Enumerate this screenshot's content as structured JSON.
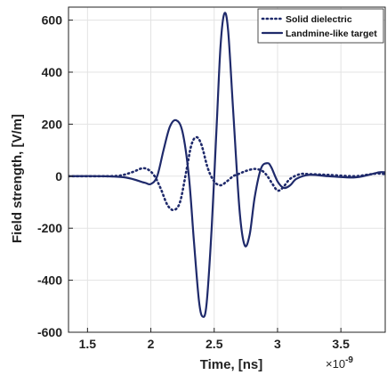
{
  "chart_data": {
    "type": "line",
    "xlabel": "Time, [ns]",
    "ylabel": "Field strength, [V/m]",
    "x_exponent_label": "×10",
    "x_exponent_power": "-9",
    "xlim": [
      1.35,
      3.85
    ],
    "ylim": [
      -600,
      650
    ],
    "x_ticks": [
      1.5,
      2,
      2.5,
      3,
      3.5
    ],
    "x_tick_labels": [
      "1.5",
      "2",
      "2.5",
      "3",
      "3.5"
    ],
    "y_ticks": [
      -600,
      -400,
      -200,
      0,
      200,
      400,
      600
    ],
    "y_tick_labels": [
      "-600",
      "-400",
      "-200",
      "0",
      "200",
      "400",
      "600"
    ],
    "grid": true,
    "legend_position": "top-right",
    "series": [
      {
        "name": "Solid dielectric",
        "style": "dotted",
        "color": "#1f2a6b",
        "points": [
          [
            1.35,
            0
          ],
          [
            1.6,
            0
          ],
          [
            1.75,
            2
          ],
          [
            1.85,
            15
          ],
          [
            1.93,
            30
          ],
          [
            1.98,
            25
          ],
          [
            2.03,
            0
          ],
          [
            2.08,
            -50
          ],
          [
            2.13,
            -110
          ],
          [
            2.18,
            -130
          ],
          [
            2.23,
            -100
          ],
          [
            2.28,
            20
          ],
          [
            2.32,
            120
          ],
          [
            2.36,
            150
          ],
          [
            2.4,
            120
          ],
          [
            2.45,
            30
          ],
          [
            2.5,
            -20
          ],
          [
            2.55,
            -35
          ],
          [
            2.6,
            -20
          ],
          [
            2.65,
            0
          ],
          [
            2.7,
            10
          ],
          [
            2.75,
            20
          ],
          [
            2.82,
            28
          ],
          [
            2.88,
            20
          ],
          [
            2.92,
            0
          ],
          [
            2.96,
            -30
          ],
          [
            3.0,
            -55
          ],
          [
            3.04,
            -45
          ],
          [
            3.1,
            -10
          ],
          [
            3.18,
            8
          ],
          [
            3.25,
            8
          ],
          [
            3.4,
            5
          ],
          [
            3.6,
            0
          ],
          [
            3.7,
            5
          ],
          [
            3.78,
            10
          ],
          [
            3.85,
            8
          ]
        ]
      },
      {
        "name": "Landmine-like target",
        "style": "solid",
        "color": "#1f2a6b",
        "points": [
          [
            1.35,
            0
          ],
          [
            1.6,
            0
          ],
          [
            1.8,
            -5
          ],
          [
            1.95,
            -25
          ],
          [
            2.0,
            -30
          ],
          [
            2.05,
            0
          ],
          [
            2.1,
            100
          ],
          [
            2.15,
            190
          ],
          [
            2.2,
            215
          ],
          [
            2.25,
            170
          ],
          [
            2.3,
            0
          ],
          [
            2.34,
            -250
          ],
          [
            2.38,
            -480
          ],
          [
            2.41,
            -540
          ],
          [
            2.44,
            -490
          ],
          [
            2.48,
            -200
          ],
          [
            2.52,
            200
          ],
          [
            2.55,
            500
          ],
          [
            2.58,
            625
          ],
          [
            2.61,
            560
          ],
          [
            2.65,
            250
          ],
          [
            2.7,
            -130
          ],
          [
            2.74,
            -265
          ],
          [
            2.78,
            -225
          ],
          [
            2.82,
            -80
          ],
          [
            2.87,
            30
          ],
          [
            2.92,
            50
          ],
          [
            2.95,
            35
          ],
          [
            3.0,
            -20
          ],
          [
            3.05,
            -45
          ],
          [
            3.1,
            -35
          ],
          [
            3.15,
            -10
          ],
          [
            3.25,
            5
          ],
          [
            3.4,
            0
          ],
          [
            3.6,
            -5
          ],
          [
            3.72,
            5
          ],
          [
            3.8,
            15
          ],
          [
            3.85,
            15
          ]
        ]
      }
    ]
  }
}
